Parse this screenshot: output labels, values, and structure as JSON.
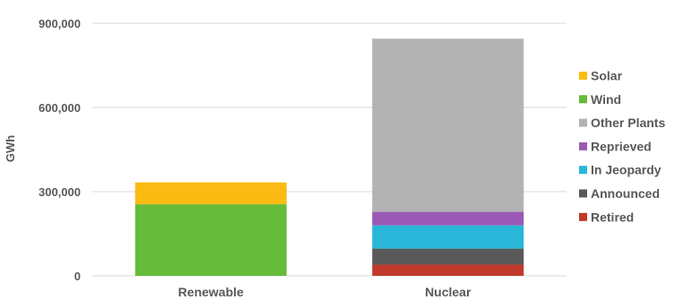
{
  "chart_data": {
    "type": "bar",
    "stacked": true,
    "categories": [
      "Renewable",
      "Nuclear"
    ],
    "ylabel": "GWh",
    "ylim": [
      0,
      900000
    ],
    "yticks": [
      0,
      300000,
      600000,
      900000
    ],
    "ytick_labels": [
      "0",
      "300,000",
      "600,000",
      "900,000"
    ],
    "grid": true,
    "legend_position": "right",
    "series": [
      {
        "name": "Retired",
        "color": "#c0392b",
        "values": [
          0,
          40000
        ]
      },
      {
        "name": "Announced",
        "color": "#595959",
        "values": [
          0,
          57000
        ]
      },
      {
        "name": "In Jeopardy",
        "color": "#29b6d8",
        "values": [
          0,
          83000
        ]
      },
      {
        "name": "Reprieved",
        "color": "#9b59b6",
        "values": [
          0,
          48000
        ]
      },
      {
        "name": "Other Plants",
        "color": "#b3b3b3",
        "values": [
          0,
          617000
        ]
      },
      {
        "name": "Wind",
        "color": "#66bb3a",
        "values": [
          255000,
          0
        ]
      },
      {
        "name": "Solar",
        "color": "#fbbb13",
        "values": [
          78000,
          0
        ]
      }
    ],
    "legend_order": [
      "Solar",
      "Wind",
      "Other Plants",
      "Reprieved",
      "In Jeopardy",
      "Announced",
      "Retired"
    ]
  }
}
